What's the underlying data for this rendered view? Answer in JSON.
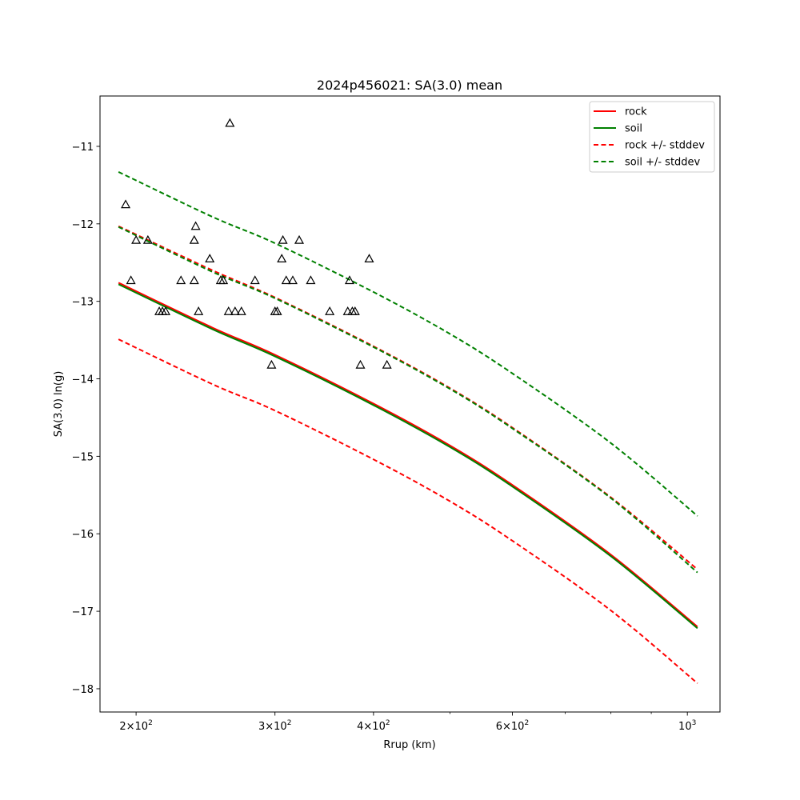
{
  "chart_data": {
    "type": "line",
    "title": "2024p456021: SA(3.0) mean",
    "xlabel": "Rrup (km)",
    "ylabel": "SA(3.0) ln(g)",
    "x_scale": "log",
    "xlim": [
      180,
      1100
    ],
    "ylim": [
      -18.3,
      -10.35
    ],
    "xticks": [
      {
        "value": 200,
        "base": "2",
        "exp": "2"
      },
      {
        "value": 300,
        "base": "3",
        "exp": "2"
      },
      {
        "value": 400,
        "base": "4",
        "exp": "2"
      },
      {
        "value": 600,
        "base": "6",
        "exp": "2"
      },
      {
        "value": 1000,
        "base": "10",
        "exp": "3"
      }
    ],
    "yticks": [
      -11,
      -12,
      -13,
      -14,
      -15,
      -16,
      -17,
      -18
    ],
    "legend_position": "upper right",
    "legend": [
      {
        "label": "rock",
        "color": "#ff0000",
        "dash": false
      },
      {
        "label": "soil",
        "color": "#008000",
        "dash": false
      },
      {
        "label": "rock +/- stddev",
        "color": "#ff0000",
        "dash": true
      },
      {
        "label": "soil +/- stddev",
        "color": "#008000",
        "dash": true
      }
    ],
    "curve_x": [
      190,
      250,
      300,
      400,
      500,
      600,
      800,
      1030
    ],
    "series": [
      {
        "role": "rock mean",
        "color": "#ff0000",
        "dash": false,
        "values": [
          -12.76,
          -13.34,
          -13.69,
          -14.32,
          -14.86,
          -15.37,
          -16.27,
          -17.2
        ]
      },
      {
        "role": "soil mean",
        "color": "#008000",
        "dash": false,
        "values": [
          -12.78,
          -13.36,
          -13.71,
          -14.34,
          -14.88,
          -15.39,
          -16.29,
          -17.22
        ]
      },
      {
        "role": "rock + stddev",
        "color": "#ff0000",
        "dash": true,
        "values": [
          -12.03,
          -12.6,
          -12.95,
          -13.58,
          -14.12,
          -14.63,
          -15.53,
          -16.46
        ]
      },
      {
        "role": "rock - stddev",
        "color": "#ff0000",
        "dash": true,
        "values": [
          -13.49,
          -14.07,
          -14.41,
          -15.04,
          -15.58,
          -16.09,
          -16.99,
          -17.93
        ]
      },
      {
        "role": "soil + stddev",
        "color": "#008000",
        "dash": true,
        "values": [
          -11.33,
          -11.91,
          -12.25,
          -12.88,
          -13.42,
          -13.93,
          -14.83,
          -15.77
        ]
      },
      {
        "role": "soil - stddev",
        "color": "#008000",
        "dash": true,
        "values": [
          -12.04,
          -12.62,
          -12.96,
          -13.59,
          -14.13,
          -14.64,
          -15.54,
          -16.5
        ]
      }
    ],
    "observations": [
      {
        "x": 194,
        "y": -11.75
      },
      {
        "x": 197,
        "y": -12.73
      },
      {
        "x": 200,
        "y": -12.21
      },
      {
        "x": 207,
        "y": -12.21
      },
      {
        "x": 214,
        "y": -13.13
      },
      {
        "x": 216,
        "y": -13.13
      },
      {
        "x": 218,
        "y": -13.13
      },
      {
        "x": 228,
        "y": -12.73
      },
      {
        "x": 237,
        "y": -12.73
      },
      {
        "x": 237,
        "y": -12.21
      },
      {
        "x": 238,
        "y": -12.03
      },
      {
        "x": 240,
        "y": -13.13
      },
      {
        "x": 248,
        "y": -12.45
      },
      {
        "x": 256,
        "y": -12.73
      },
      {
        "x": 258,
        "y": -12.73
      },
      {
        "x": 262,
        "y": -13.13
      },
      {
        "x": 263,
        "y": -10.7
      },
      {
        "x": 267,
        "y": -13.13
      },
      {
        "x": 272,
        "y": -13.13
      },
      {
        "x": 283,
        "y": -12.73
      },
      {
        "x": 297,
        "y": -13.82
      },
      {
        "x": 300,
        "y": -13.13
      },
      {
        "x": 302,
        "y": -13.13
      },
      {
        "x": 306,
        "y": -12.45
      },
      {
        "x": 307,
        "y": -12.21
      },
      {
        "x": 310,
        "y": -12.73
      },
      {
        "x": 316,
        "y": -12.73
      },
      {
        "x": 322,
        "y": -12.21
      },
      {
        "x": 333,
        "y": -12.73
      },
      {
        "x": 352,
        "y": -13.13
      },
      {
        "x": 371,
        "y": -13.13
      },
      {
        "x": 373,
        "y": -12.73
      },
      {
        "x": 376,
        "y": -13.13
      },
      {
        "x": 379,
        "y": -13.13
      },
      {
        "x": 385,
        "y": -13.82
      },
      {
        "x": 395,
        "y": -12.45
      },
      {
        "x": 416,
        "y": -13.82
      }
    ]
  }
}
